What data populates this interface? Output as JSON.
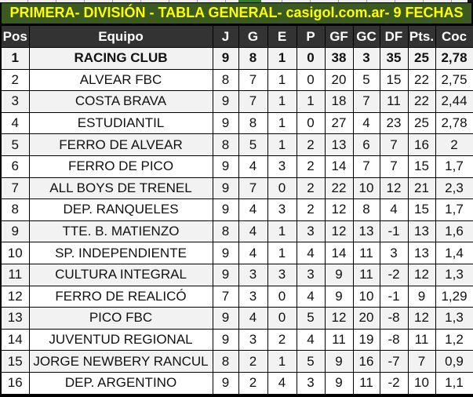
{
  "title": "PRIMERA- DIVISIÓN - TABLA GENERAL- casigol.com.ar- 9 FECHAS",
  "colors": {
    "banner_bg": "#3a5a21",
    "banner_text": "#ffff00",
    "header_bg": "#333333",
    "header_text": "#ffffff",
    "row_alt_bg": "#f2f2f2",
    "row_bg": "#ffffff",
    "border": "#000000",
    "top_strip_green": "#2e7d32"
  },
  "chart_data": {
    "type": "table",
    "title": "PRIMERA- DIVISIÓN - TABLA GENERAL- casigol.com.ar- 9 FECHAS",
    "columns": [
      "Pos",
      "Equipo",
      "J",
      "G",
      "E",
      "P",
      "GF",
      "GC",
      "DF",
      "Pts.",
      "Coc"
    ],
    "rows": [
      [
        "1",
        "RACING CLUB",
        "9",
        "8",
        "1",
        "0",
        "38",
        "3",
        "35",
        "25",
        "2,78"
      ],
      [
        "2",
        "ALVEAR FBC",
        "8",
        "7",
        "1",
        "0",
        "20",
        "5",
        "15",
        "22",
        "2,75"
      ],
      [
        "3",
        "COSTA BRAVA",
        "9",
        "7",
        "1",
        "1",
        "18",
        "7",
        "11",
        "22",
        "2,44"
      ],
      [
        "4",
        "ESTUDIANTIL",
        "9",
        "8",
        "1",
        "0",
        "27",
        "4",
        "23",
        "25",
        "2,78"
      ],
      [
        "5",
        "FERRO DE ALVEAR",
        "8",
        "5",
        "1",
        "2",
        "13",
        "6",
        "7",
        "16",
        "2"
      ],
      [
        "6",
        "FERRO DE PICO",
        "9",
        "4",
        "3",
        "2",
        "14",
        "7",
        "7",
        "15",
        "1,7"
      ],
      [
        "7",
        "ALL BOYS DE TRENEL",
        "9",
        "7",
        "0",
        "2",
        "22",
        "10",
        "12",
        "21",
        "2,3"
      ],
      [
        "8",
        "DEP. RANQUELES",
        "9",
        "4",
        "3",
        "2",
        "12",
        "8",
        "4",
        "15",
        "1,7"
      ],
      [
        "9",
        "TTE. B. MATIENZO",
        "8",
        "4",
        "1",
        "3",
        "12",
        "13",
        "-1",
        "13",
        "1,6"
      ],
      [
        "10",
        "SP. INDEPENDIENTE",
        "9",
        "4",
        "1",
        "4",
        "14",
        "11",
        "3",
        "13",
        "1,4"
      ],
      [
        "11",
        "CULTURA INTEGRAL",
        "9",
        "3",
        "3",
        "3",
        "9",
        "11",
        "-2",
        "12",
        "1,3"
      ],
      [
        "12",
        "FERRO DE REALICÓ",
        "7",
        "3",
        "0",
        "4",
        "9",
        "10",
        "-1",
        "9",
        "1,29"
      ],
      [
        "13",
        "PICO FBC",
        "9",
        "4",
        "0",
        "5",
        "12",
        "20",
        "-8",
        "12",
        "1,3"
      ],
      [
        "14",
        "JUVENTUD REGIONAL",
        "9",
        "3",
        "2",
        "4",
        "11",
        "19",
        "-8",
        "11",
        "1,2"
      ],
      [
        "15",
        "JORGE NEWBERY RANCUL",
        "8",
        "2",
        "1",
        "5",
        "9",
        "16",
        "-7",
        "7",
        "0,9"
      ],
      [
        "16",
        "DEP. ARGENTINO",
        "9",
        "2",
        "4",
        "3",
        "9",
        "11",
        "-2",
        "10",
        "1,1"
      ]
    ]
  }
}
